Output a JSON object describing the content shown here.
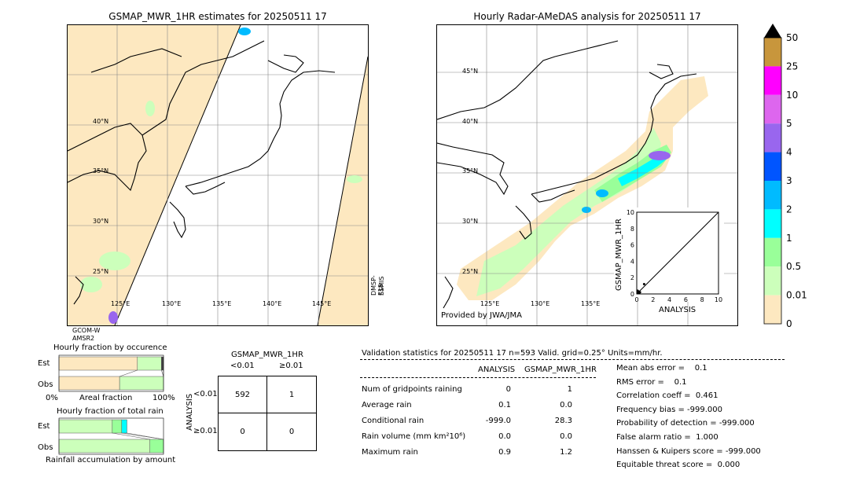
{
  "left_map": {
    "title": "GSMAP_MWR_1HR estimates for 20250511 17",
    "lat_labels": [
      "40°N",
      "35°N",
      "30°N",
      "25°N"
    ],
    "lon_labels": [
      "125°E",
      "130°E",
      "135°E",
      "140°E",
      "145°E"
    ],
    "sat_left_1": "GCOM-W",
    "sat_left_2": "AMSR2",
    "sat_right_1": "DMSP-F18",
    "sat_right_2": "SSMIS"
  },
  "right_map": {
    "title": "Hourly Radar-AMeDAS analysis for 20250511 17",
    "lat_labels": [
      "45°N",
      "40°N",
      "35°N",
      "30°N",
      "25°N"
    ],
    "lon_labels": [
      "125°E",
      "130°E",
      "135°E"
    ],
    "credit": "Provided by JWA/JMA"
  },
  "scatter": {
    "ylabel": "GSMAP_MWR_1HR",
    "xlabel": "ANALYSIS",
    "ticks": [
      "0",
      "2",
      "4",
      "6",
      "8",
      "10"
    ]
  },
  "colorbar": {
    "labels": [
      "50",
      "25",
      "10",
      "5",
      "4",
      "3",
      "2",
      "1",
      "0.5",
      "0.01",
      "0"
    ],
    "colors": [
      "#c8963c",
      "#ff00ff",
      "#dd66ee",
      "#9966ee",
      "#0055ff",
      "#00bbff",
      "#00ffff",
      "#99ff99",
      "#ccffbb",
      "#fde8c0"
    ]
  },
  "fraction": {
    "title1": "Hourly fraction by occurence",
    "title2": "Hourly fraction of total rain",
    "est": "Est",
    "obs": "Obs",
    "xlabel1": "Areal fraction",
    "xlabel2": "Rainfall accumulation by amount",
    "x0": "0%",
    "x100": "100%"
  },
  "contingency": {
    "title": "GSMAP_MWR_1HR",
    "col1": "<0.01",
    "col2": "≥0.01",
    "row1": "<0.01",
    "row2": "≥0.01",
    "ylabel": "ANALYSIS",
    "a": "592",
    "b": "1",
    "c": "0",
    "d": "0"
  },
  "validation": {
    "header": "Validation statistics for 20250511 17  n=593 Valid. grid=0.25° Units=mm/hr.",
    "col_analysis": "ANALYSIS",
    "col_gsmap": "GSMAP_MWR_1HR",
    "rows": [
      {
        "label": "Num of gridpoints raining",
        "analysis": "0",
        "gsmap": "1"
      },
      {
        "label": "Average rain",
        "analysis": "0.1",
        "gsmap": "0.0"
      },
      {
        "label": "Conditional rain",
        "analysis": "-999.0",
        "gsmap": "28.3"
      },
      {
        "label": "Rain volume (mm km²10⁶)",
        "analysis": "0.0",
        "gsmap": "0.0"
      },
      {
        "label": "Maximum rain",
        "analysis": "0.9",
        "gsmap": "1.2"
      }
    ],
    "scores": [
      "Mean abs error =    0.1",
      "RMS error =    0.1",
      "Correlation coeff =  0.461",
      "Frequency bias = -999.000",
      "Probability of detection = -999.000",
      "False alarm ratio =  1.000",
      "Hanssen & Kuipers score = -999.000",
      "Equitable threat score =  0.000"
    ]
  },
  "chart_data": [
    {
      "type": "scatter",
      "title": "",
      "xlabel": "ANALYSIS",
      "ylabel": "GSMAP_MWR_1HR",
      "xlim": [
        0,
        10
      ],
      "ylim": [
        0,
        10
      ],
      "points": [
        {
          "x": 0.1,
          "y": 0.1
        },
        {
          "x": 0.2,
          "y": 0.3
        },
        {
          "x": 0.3,
          "y": 0.1
        },
        {
          "x": 0.4,
          "y": 0.2
        },
        {
          "x": 0.9,
          "y": 1.2
        },
        {
          "x": 0.1,
          "y": 0.4
        }
      ]
    },
    {
      "type": "bar",
      "title": "Hourly fraction by occurence",
      "categories": [
        "Est",
        "Obs"
      ],
      "series": [
        {
          "values": [
            0.75,
            0.58
          ]
        },
        {
          "values": [
            0.23,
            0.42
          ]
        },
        {
          "values": [
            0.02,
            0.0
          ]
        }
      ]
    },
    {
      "type": "bar",
      "title": "Hourly fraction of total rain",
      "categories": [
        "Est",
        "Obs"
      ],
      "series": [
        {
          "values": [
            0.51,
            0.87
          ]
        },
        {
          "values": [
            0.09,
            0.13
          ]
        },
        {
          "values": [
            0.05,
            0.0
          ]
        }
      ]
    }
  ]
}
